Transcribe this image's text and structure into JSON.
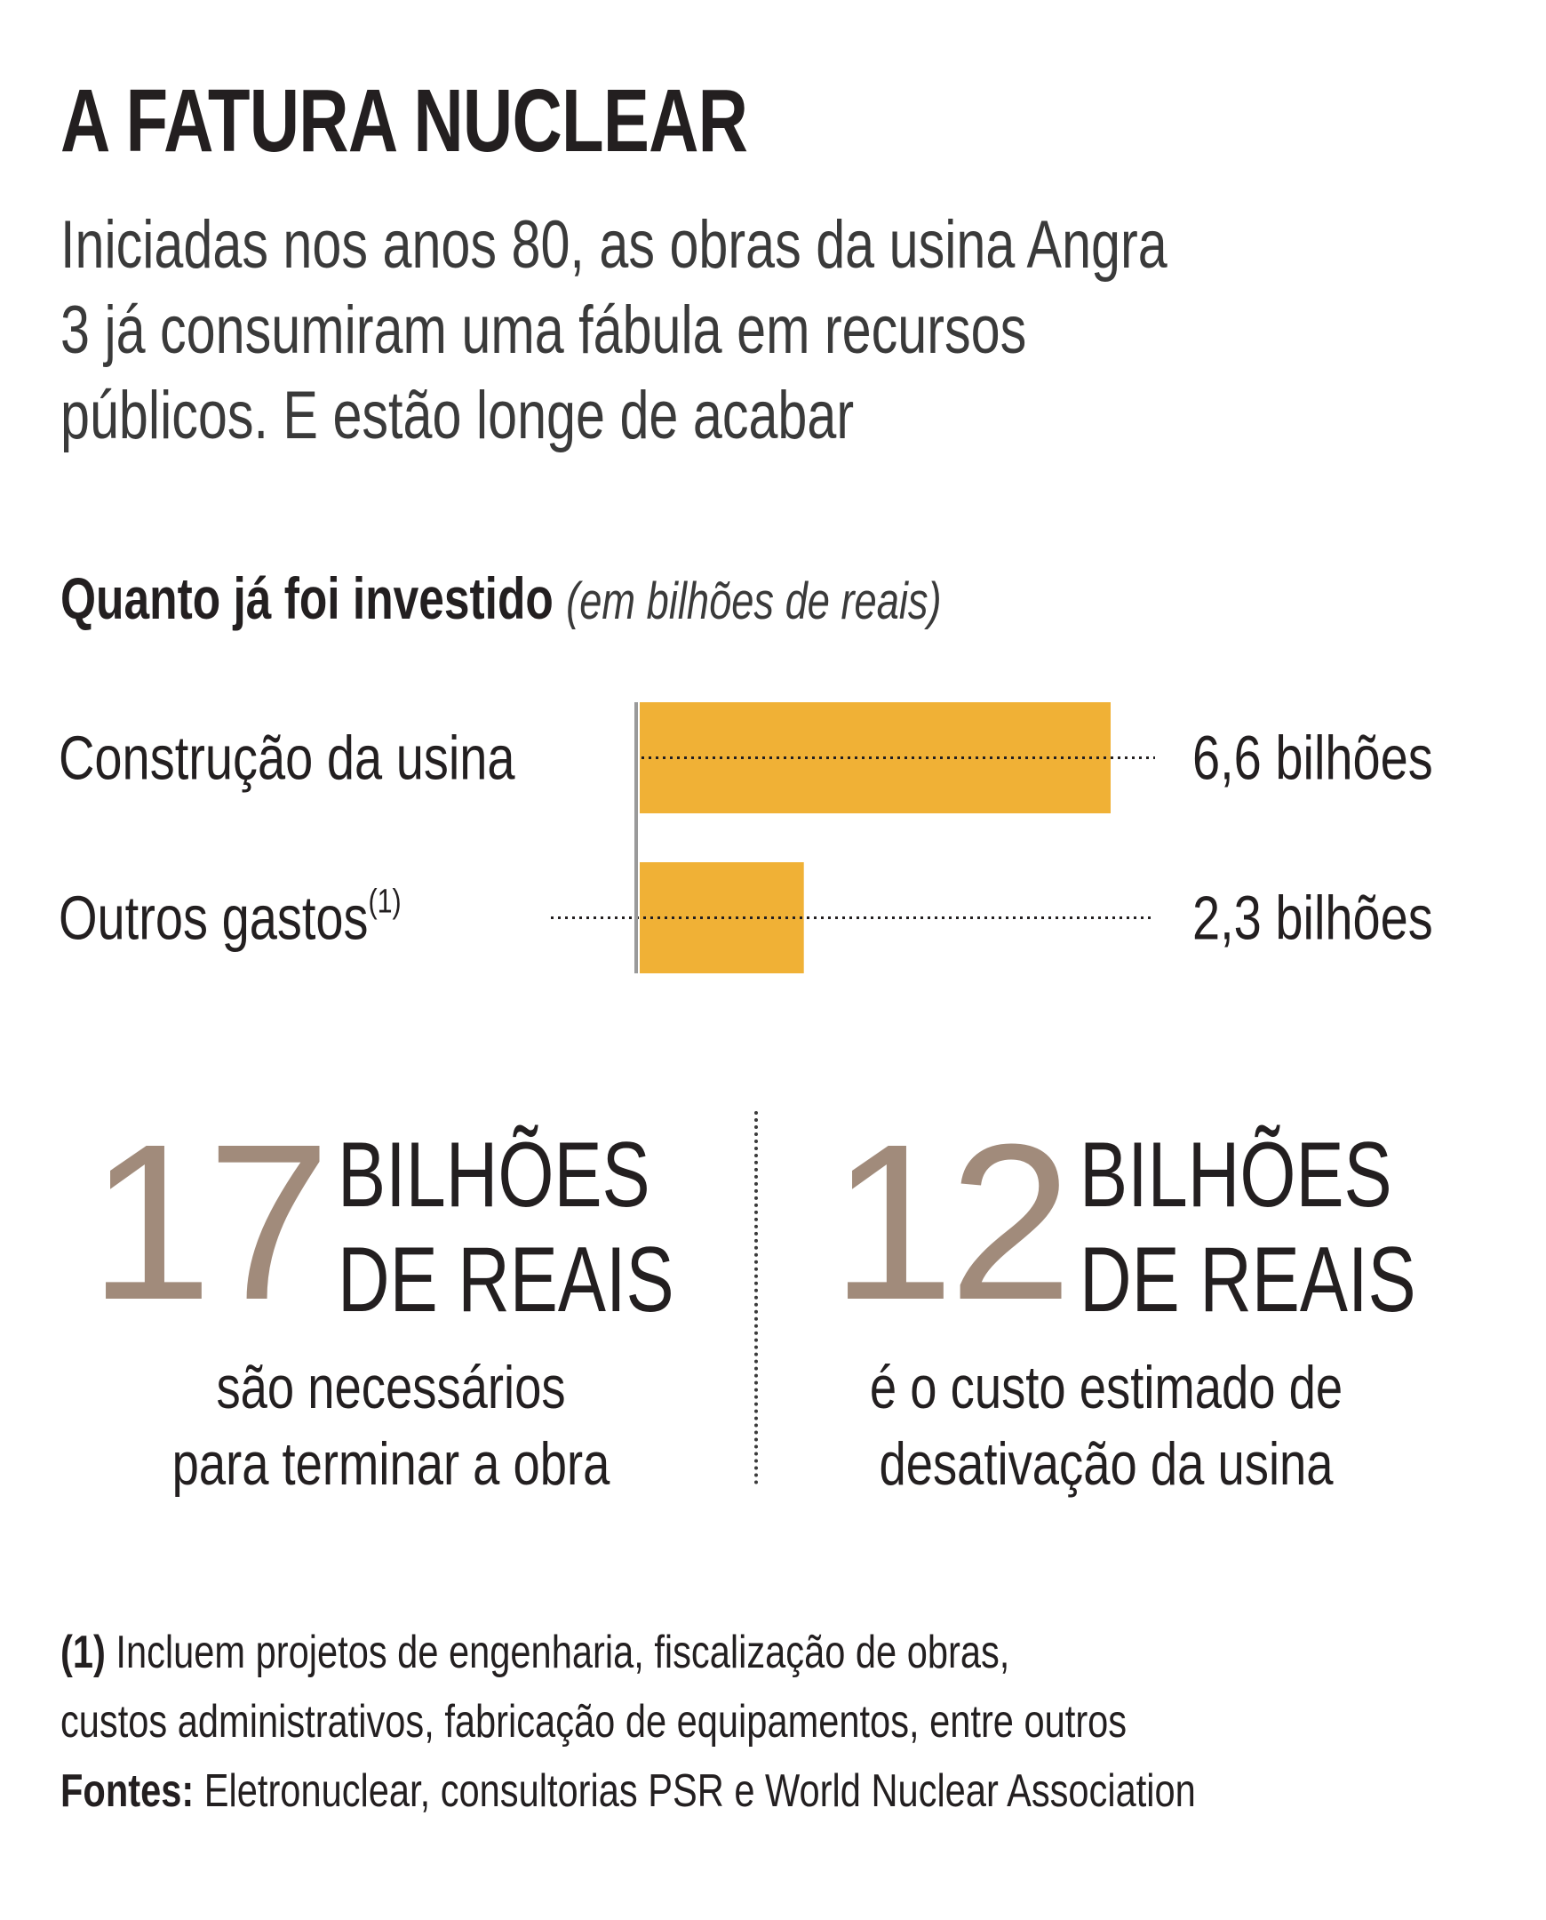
{
  "title": "A FATURA NUCLEAR",
  "subtitle_lines": [
    "Iniciadas nos anos 80, as obras da usina Angra",
    "3 já consumiram uma fábula em recursos",
    "públicos. E estão longe de acabar"
  ],
  "section": {
    "heading": "Quanto já foi investido",
    "unit": "(em bilhões de reais)"
  },
  "chart_data": {
    "type": "bar",
    "orientation": "horizontal",
    "title": "Quanto já foi investido",
    "unit_note": "(em bilhões de reais)",
    "categories": [
      "Construção da usina",
      "Outros gastos"
    ],
    "category_footnotes": [
      "",
      "(1)"
    ],
    "values": [
      6.6,
      2.3
    ],
    "value_labels": [
      "6,6 bilhões",
      "2,3 bilhões"
    ],
    "bar_color": "#f0b136",
    "axis_color": "#9a9a9a",
    "grid": false,
    "legend": "none"
  },
  "stats": [
    {
      "number": "17",
      "unit_lines": [
        "BILHÕES",
        "DE REAIS"
      ],
      "desc_lines": [
        "são necessários",
        "para terminar a obra"
      ]
    },
    {
      "number": "12",
      "unit_lines": [
        "BILHÕES",
        "DE REAIS"
      ],
      "desc_lines": [
        "é o custo estimado de",
        "desativação da usina"
      ]
    }
  ],
  "notes": {
    "footnote_marker": "(1)",
    "footnote_lines": [
      "Incluem projetos de engenharia, fiscalização de obras,",
      "custos administrativos, fabricação de equipamentos, entre outros"
    ],
    "sources_label": "Fontes:",
    "sources_text": "Eletronuclear, consultorias PSR e World Nuclear Association"
  },
  "colors": {
    "big_number": "#a18b7b",
    "text": "#231f20"
  }
}
